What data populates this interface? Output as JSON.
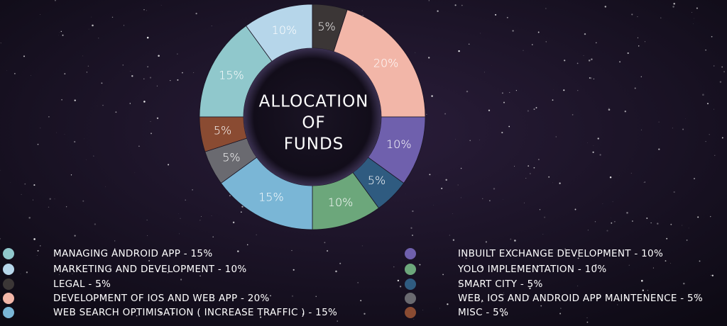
{
  "chart_data": {
    "type": "donut",
    "title": [
      "ALLOCATION",
      "OF",
      "FUNDS"
    ],
    "categories": [
      "MANAGING ANDROID APP - 15%",
      "MARKETING AND DEVELOPMENT - 10%",
      "LEGAL - 5%",
      "DEVELOPMENT OF IOS AND WEB APP - 20%",
      "INBUILT EXCHANGE DEVELOPMENT - 10%",
      "SMART CITY - 5%",
      "YOLO IMPLEMENTATION - 10%",
      "WEB SEARCH OPTIMISATION ( INCREASE TRAFFIC ) - 15%",
      "WEB, IOS AND ANDROID APP MAINTENENCE - 5%",
      "MISC - 5%"
    ],
    "values": [
      15,
      10,
      5,
      20,
      10,
      5,
      10,
      15,
      5,
      5
    ],
    "value_labels": [
      "15%",
      "10%",
      "5%",
      "20%",
      "10%",
      "5%",
      "10%",
      "15%",
      "5%",
      "5%"
    ],
    "colors": [
      "#90c8cc",
      "#b6d6ea",
      "#3b3636",
      "#f2b6a8",
      "#6f60ad",
      "#2f5b80",
      "#6ca77b",
      "#7ab6d6",
      "#6a6a70",
      "#8a4b32"
    ]
  }
}
